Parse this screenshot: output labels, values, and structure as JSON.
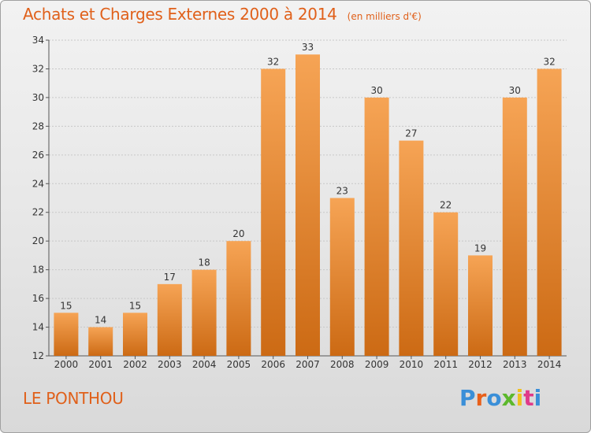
{
  "header": {
    "title": "Achats et Charges Externes 2000 à 2014",
    "subtitle": "(en milliers d'€)"
  },
  "footer": {
    "location": "LE PONTHOU",
    "logo_text": "Proxiti"
  },
  "colors": {
    "title": "#e0601a",
    "bar_light": "#f6a455",
    "bar_dark": "#cc6a14",
    "logo_letters": [
      "#3a8fd8",
      "#e8601a",
      "#3a8fd8",
      "#5cb82c",
      "#f0c020",
      "#e03a8a",
      "#3a8fd8"
    ]
  },
  "chart_data": {
    "type": "bar",
    "categories": [
      "2000",
      "2001",
      "2002",
      "2003",
      "2004",
      "2005",
      "2006",
      "2007",
      "2008",
      "2009",
      "2010",
      "2011",
      "2012",
      "2013",
      "2014"
    ],
    "values": [
      15,
      14,
      15,
      17,
      18,
      20,
      32,
      33,
      23,
      30,
      27,
      22,
      19,
      30,
      32
    ],
    "ylim": [
      12,
      34
    ],
    "yticks": [
      12,
      14,
      16,
      18,
      20,
      22,
      24,
      26,
      28,
      30,
      32,
      34
    ],
    "grid": true,
    "legend": "none"
  }
}
